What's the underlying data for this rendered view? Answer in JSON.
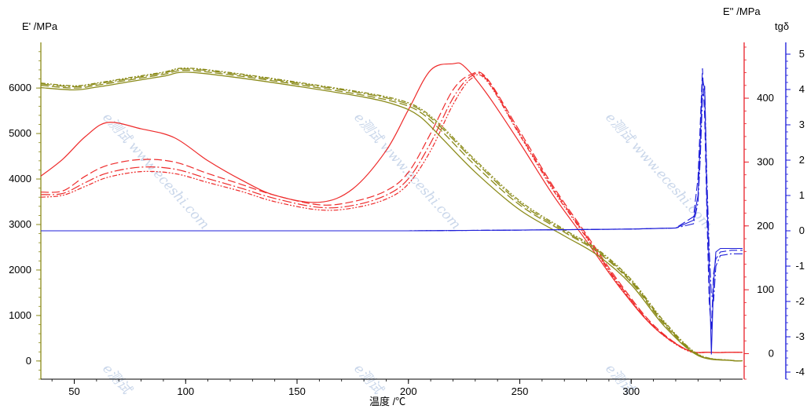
{
  "chart_data": {
    "type": "line",
    "axis_labels": {
      "left_y": "E' /MPa",
      "right_y1": "E'' /MPa",
      "right_y2": "tgδ",
      "x": "温度 /℃"
    },
    "x_axis": {
      "min": 35,
      "max": 350,
      "ticks": [
        "50",
        "100",
        "150",
        "200",
        "250",
        "300"
      ]
    },
    "left_y_axis": {
      "min": -400,
      "max": 6900,
      "ticks": [
        "0",
        "1000",
        "2000",
        "3000",
        "4000",
        "5000",
        "6000"
      ],
      "color": "#8b8b1a"
    },
    "right_y1_axis": {
      "min": -40,
      "max": 480,
      "ticks": [
        "0",
        "100",
        "200",
        "300",
        "400"
      ],
      "color": "#e8202a"
    },
    "right_y2_axis": {
      "min": -4.2,
      "max": 5.2,
      "ticks": [
        "-4",
        "-3",
        "-2",
        "-1",
        "0",
        "1",
        "2",
        "3",
        "4",
        "5"
      ],
      "color": "#1515d8"
    },
    "colors": {
      "storage": "#8b8b1a",
      "loss": "#ee2a2a",
      "tan": "#1f1fd8"
    },
    "storage_modulus_series": [
      {
        "x": [
          35,
          50,
          60,
          75,
          90,
          100,
          120,
          150,
          180,
          195,
          205,
          215,
          230,
          250,
          270,
          285,
          300,
          315,
          330,
          345,
          350
        ],
        "y": [
          6010,
          5960,
          6020,
          6140,
          6260,
          6350,
          6250,
          6040,
          5800,
          5620,
          5380,
          4900,
          4150,
          3320,
          2750,
          2320,
          1680,
          760,
          120,
          10,
          5
        ]
      },
      {
        "x": [
          35,
          50,
          60,
          75,
          90,
          100,
          120,
          150,
          180,
          195,
          205,
          215,
          230,
          250,
          270,
          285,
          300,
          315,
          330,
          345,
          350
        ],
        "y": [
          6060,
          6000,
          6060,
          6180,
          6300,
          6390,
          6290,
          6080,
          5840,
          5680,
          5480,
          5050,
          4300,
          3430,
          2830,
          2390,
          1730,
          800,
          130,
          12,
          5
        ]
      },
      {
        "x": [
          35,
          50,
          60,
          75,
          90,
          100,
          120,
          150,
          180,
          195,
          205,
          215,
          230,
          250,
          270,
          285,
          300,
          315,
          330,
          345,
          350
        ],
        "y": [
          6090,
          6030,
          6090,
          6210,
          6330,
          6420,
          6320,
          6110,
          5880,
          5720,
          5530,
          5120,
          4380,
          3480,
          2860,
          2420,
          1760,
          830,
          140,
          12,
          5
        ]
      },
      {
        "x": [
          35,
          50,
          60,
          75,
          90,
          100,
          120,
          150,
          180,
          195,
          205,
          215,
          230,
          250,
          270,
          285,
          300,
          315,
          330,
          345,
          350
        ],
        "y": [
          6110,
          6050,
          6110,
          6230,
          6350,
          6440,
          6340,
          6130,
          5900,
          5750,
          5560,
          5160,
          4420,
          3520,
          2890,
          2450,
          1790,
          860,
          150,
          14,
          6
        ]
      }
    ],
    "loss_modulus_series": [
      {
        "x": [
          35,
          45,
          55,
          65,
          80,
          95,
          110,
          125,
          140,
          160,
          175,
          190,
          200,
          210,
          220,
          225,
          235,
          250,
          265,
          280,
          295,
          310,
          325,
          335,
          345,
          350
        ],
        "y": [
          278,
          305,
          340,
          362,
          352,
          338,
          302,
          272,
          248,
          237,
          258,
          318,
          382,
          444,
          454,
          450,
          408,
          330,
          248,
          176,
          103,
          42,
          6,
          2,
          2,
          2
        ]
      },
      {
        "x": [
          35,
          45,
          55,
          65,
          80,
          95,
          110,
          125,
          140,
          160,
          175,
          190,
          200,
          210,
          220,
          228,
          235,
          250,
          265,
          280,
          295,
          310,
          325,
          335,
          345,
          350
        ],
        "y": [
          253,
          255,
          278,
          295,
          304,
          300,
          282,
          265,
          248,
          233,
          238,
          255,
          284,
          345,
          413,
          437,
          432,
          348,
          262,
          186,
          110,
          45,
          6,
          2,
          2,
          2
        ]
      },
      {
        "x": [
          35,
          45,
          55,
          65,
          80,
          95,
          110,
          125,
          140,
          160,
          175,
          190,
          200,
          210,
          220,
          228,
          235,
          250,
          265,
          280,
          295,
          310,
          325,
          335,
          345,
          350
        ],
        "y": [
          249,
          251,
          268,
          283,
          292,
          289,
          274,
          259,
          243,
          229,
          232,
          248,
          274,
          330,
          400,
          434,
          430,
          344,
          259,
          183,
          107,
          43,
          6,
          2,
          2,
          2
        ]
      },
      {
        "x": [
          35,
          45,
          55,
          65,
          80,
          95,
          110,
          125,
          140,
          160,
          175,
          190,
          200,
          210,
          220,
          228,
          235,
          250,
          265,
          280,
          295,
          310,
          325,
          335,
          345,
          350
        ],
        "y": [
          245,
          248,
          262,
          276,
          285,
          282,
          268,
          254,
          238,
          225,
          228,
          242,
          266,
          318,
          390,
          430,
          428,
          342,
          256,
          181,
          105,
          42,
          5,
          2,
          2,
          2
        ]
      }
    ],
    "tan_delta_series": [
      {
        "x": [
          35,
          100,
          200,
          250,
          300,
          320,
          328,
          330,
          331,
          332,
          333,
          334,
          335,
          336,
          337,
          338,
          340,
          345,
          350
        ],
        "y": [
          0,
          0,
          0,
          0.02,
          0.05,
          0.08,
          0.3,
          1,
          2.5,
          4.3,
          4,
          1,
          -1,
          -3.5,
          -1.5,
          -0.6,
          -0.5,
          -0.5,
          -0.5
        ]
      },
      {
        "x": [
          35,
          100,
          200,
          250,
          300,
          320,
          328,
          330,
          331,
          332,
          333,
          334,
          335,
          336,
          337,
          338,
          340,
          345,
          350
        ],
        "y": [
          0,
          0,
          0,
          0.02,
          0.05,
          0.08,
          0.4,
          1.5,
          3,
          4.6,
          3.2,
          0.5,
          -2,
          -2.8,
          -1.2,
          -0.8,
          -0.6,
          -0.55,
          -0.55
        ]
      },
      {
        "x": [
          35,
          100,
          200,
          250,
          300,
          320,
          328,
          330,
          331,
          332,
          333,
          334,
          335,
          336,
          337,
          338,
          340,
          345,
          350
        ],
        "y": [
          0,
          0,
          0,
          0.02,
          0.05,
          0.08,
          0.2,
          0.8,
          2,
          3.8,
          4.1,
          1.5,
          -0.5,
          -1.8,
          -2,
          -1,
          -0.7,
          -0.65,
          -0.65
        ]
      }
    ],
    "watermark": [
      "e测试 www.eceshi.com",
      "e测试 www.eceshi.com",
      "e测试 www.eceshi.com",
      "e测试",
      "e测试",
      "e测试"
    ]
  }
}
